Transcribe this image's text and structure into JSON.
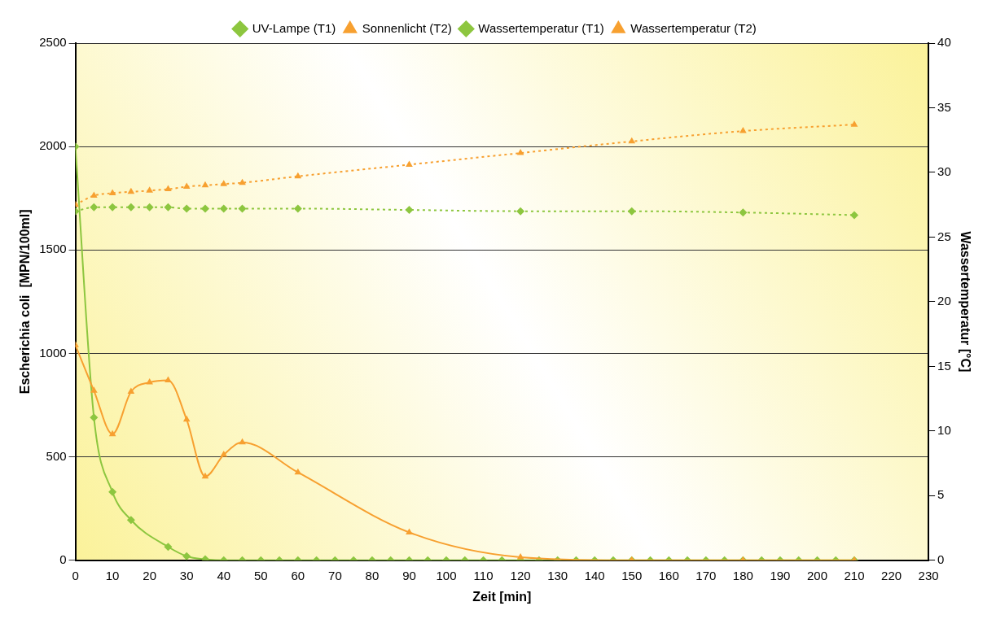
{
  "chart_data": {
    "type": "line",
    "xlabel": "Zeit [min]",
    "ylabel": "Escherichia coli  [MPN/100ml]",
    "y2label": "Wassertemperatur [°C]",
    "xlim": [
      0,
      230
    ],
    "xticks": [
      0,
      10,
      20,
      30,
      40,
      50,
      60,
      70,
      80,
      90,
      100,
      110,
      120,
      130,
      140,
      150,
      160,
      170,
      180,
      190,
      200,
      210,
      220,
      230
    ],
    "ylim": [
      0,
      2500
    ],
    "yticks": [
      0,
      500,
      1000,
      1500,
      2000,
      2500
    ],
    "y2lim": [
      0,
      40
    ],
    "y2ticks": [
      0,
      5,
      10,
      15,
      20,
      25,
      30,
      35,
      40
    ],
    "grid": "y",
    "legend": "top",
    "series": [
      {
        "name": "UV-Lampe (T1)",
        "color": "#8dc63f",
        "marker": "diamond",
        "line_style": "solid",
        "x": [
          0,
          5,
          10,
          15,
          25,
          30,
          35,
          40,
          45,
          50,
          55,
          60,
          65,
          70,
          75,
          80,
          85,
          90,
          95,
          100,
          105,
          110,
          115,
          120,
          125,
          130,
          135,
          140,
          145,
          150,
          155,
          160,
          165,
          170,
          175,
          180,
          185,
          190,
          195,
          200,
          205,
          210
        ],
        "values": [
          2000,
          690,
          330,
          195,
          65,
          20,
          5,
          0,
          0,
          0,
          0,
          0,
          0,
          0,
          0,
          0,
          0,
          0,
          0,
          0,
          0,
          0,
          0,
          0,
          0,
          0,
          0,
          0,
          0,
          0,
          0,
          0,
          0,
          0,
          0,
          0,
          0,
          0,
          0,
          0,
          0,
          0
        ]
      },
      {
        "name": "Sonnenlicht (T2)",
        "color": "#f7a030",
        "marker": "triangle",
        "line_style": "solid",
        "x": [
          0,
          5,
          10,
          15,
          20,
          25,
          30,
          35,
          40,
          45,
          60,
          90,
          120,
          150,
          180,
          210
        ],
        "values": [
          1040,
          820,
          610,
          815,
          860,
          870,
          680,
          405,
          510,
          570,
          425,
          135,
          15,
          0,
          0,
          0
        ]
      },
      {
        "name": "Wassertemperatur (T1)",
        "color": "#8dc63f",
        "marker": "diamond",
        "line_style": "dotted",
        "axis": "y2",
        "x": [
          0,
          5,
          10,
          15,
          20,
          25,
          30,
          35,
          40,
          45,
          60,
          90,
          120,
          150,
          180,
          210
        ],
        "values": [
          27.0,
          27.3,
          27.3,
          27.3,
          27.3,
          27.3,
          27.2,
          27.2,
          27.2,
          27.2,
          27.2,
          27.1,
          27.0,
          27.0,
          26.9,
          26.7
        ]
      },
      {
        "name": "Wassertemperatur (T2)",
        "color": "#f7a030",
        "marker": "triangle",
        "line_style": "dotted",
        "axis": "y2",
        "x": [
          0,
          5,
          10,
          15,
          20,
          25,
          30,
          35,
          40,
          45,
          60,
          90,
          120,
          150,
          180,
          210
        ],
        "values": [
          27.5,
          28.2,
          28.4,
          28.5,
          28.6,
          28.7,
          28.9,
          29.0,
          29.1,
          29.2,
          29.7,
          30.6,
          31.5,
          32.4,
          33.2,
          33.7
        ]
      }
    ]
  }
}
